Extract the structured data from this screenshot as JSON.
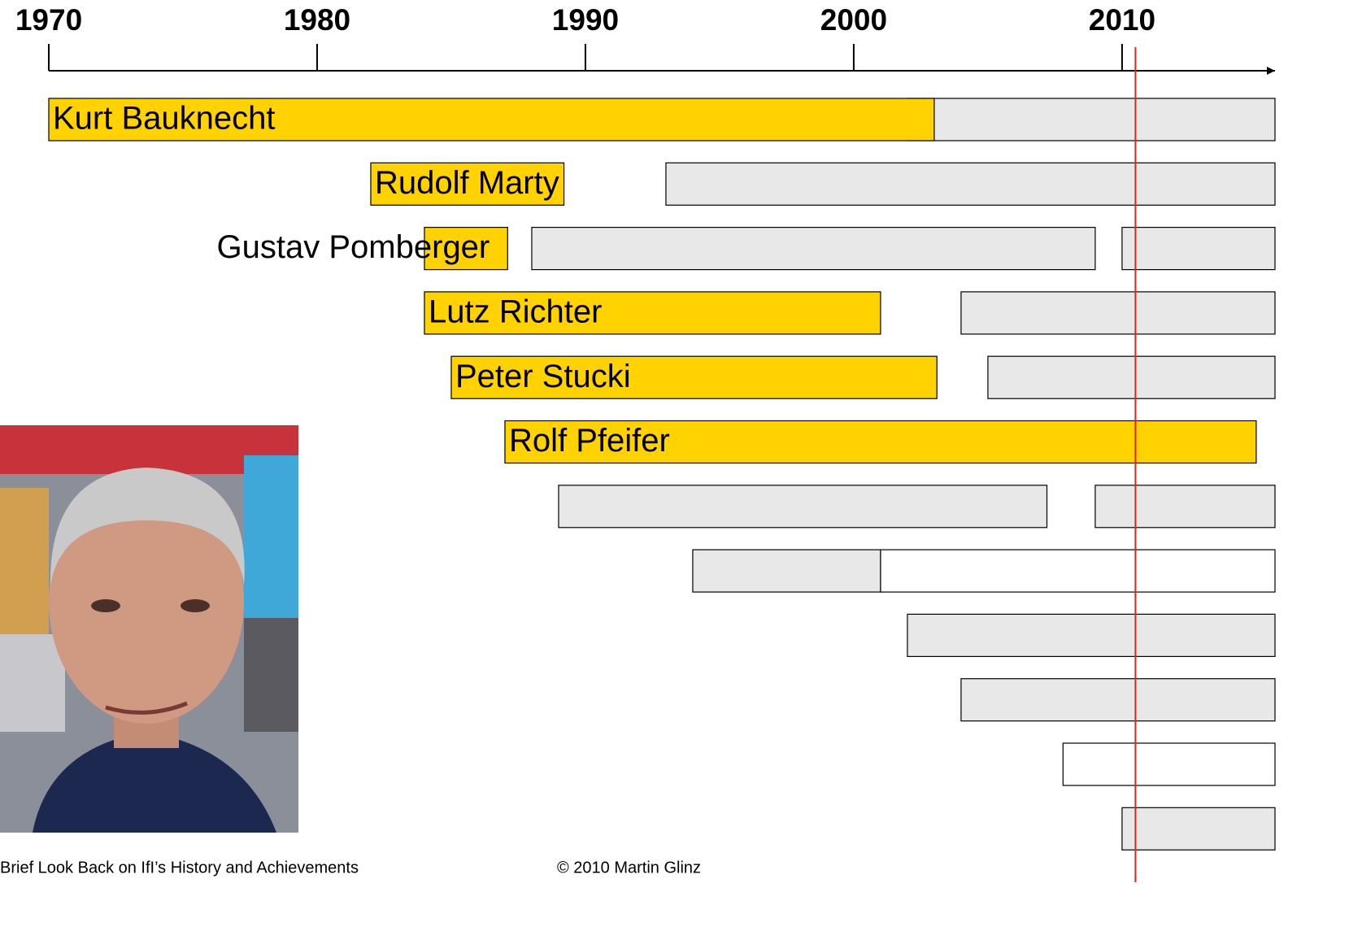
{
  "chart_data": {
    "type": "timeline",
    "xlim": [
      1970,
      2015.7
    ],
    "xticks": [
      1970,
      1980,
      1990,
      2000,
      2010
    ],
    "marker": 2010.5,
    "marker_color": "#e0251b",
    "rows": [
      {
        "name": "Kurt Bauknecht",
        "bars": [
          {
            "start": 2002,
            "end": 2015.7,
            "color": "#e8e8e8"
          },
          {
            "start": 1970,
            "end": 2003,
            "color": "#ffd200"
          }
        ]
      },
      {
        "name": "Rudolf Marty",
        "bars": [
          {
            "start": 1993,
            "end": 2015.7,
            "color": "#e8e8e8"
          },
          {
            "start": 1982,
            "end": 1989.2,
            "color": "#ffd200"
          }
        ]
      },
      {
        "name": "Gustav Pomberger",
        "bars": [
          {
            "start": 1988,
            "end": 2009,
            "color": "#e8e8e8"
          },
          {
            "start": 2010,
            "end": 2015.7,
            "color": "#e8e8e8"
          },
          {
            "start": 1984,
            "end": 1987.1,
            "color": "#ffd200"
          }
        ]
      },
      {
        "name": "Lutz Richter",
        "bars": [
          {
            "start": 2004,
            "end": 2015.7,
            "color": "#e8e8e8"
          },
          {
            "start": 1984,
            "end": 2001,
            "color": "#ffd200"
          }
        ]
      },
      {
        "name": "Peter Stucki",
        "bars": [
          {
            "start": 2005,
            "end": 2015.7,
            "color": "#e8e8e8"
          },
          {
            "start": 1985,
            "end": 2003.1,
            "color": "#ffd200"
          }
        ]
      },
      {
        "name": "Rolf Pfeifer",
        "bars": [
          {
            "start": 1987,
            "end": 2015,
            "color": "#ffd200"
          }
        ]
      },
      {
        "bars": [
          {
            "start": 1989,
            "end": 2007.2,
            "color": "#e8e8e8"
          },
          {
            "start": 2009,
            "end": 2015.7,
            "color": "#e8e8e8"
          }
        ]
      },
      {
        "bars": [
          {
            "start": 1994,
            "end": 2001,
            "color": "#e8e8e8"
          },
          {
            "start": 2001,
            "end": 2015.7,
            "color": "#ffffff"
          }
        ]
      },
      {
        "bars": [
          {
            "start": 2002,
            "end": 2015.7,
            "color": "#e8e8e8"
          }
        ]
      },
      {
        "bars": [
          {
            "start": 2004,
            "end": 2015.7,
            "color": "#e8e8e8"
          }
        ]
      },
      {
        "bars": [
          {
            "start": 2007.8,
            "end": 2015.7,
            "color": "#ffffff"
          }
        ]
      },
      {
        "bars": [
          {
            "start": 2010,
            "end": 2015.7,
            "color": "#e8e8e8"
          }
        ]
      }
    ],
    "footer_left": "Brief Look Back on IfI’s History and Achievements",
    "footer_right": "© 2010 Martin Glinz"
  }
}
